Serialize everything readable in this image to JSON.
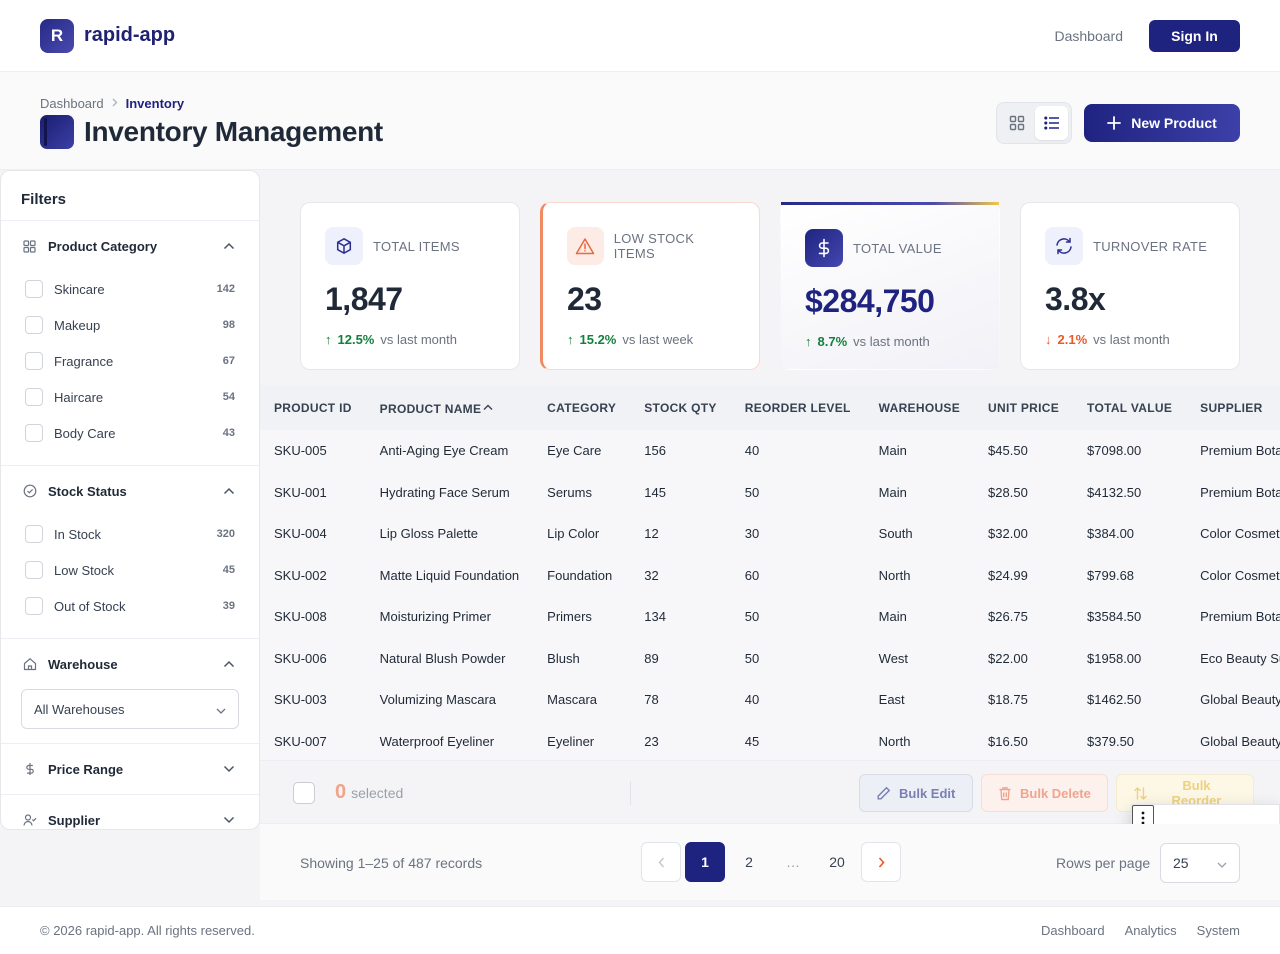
{
  "app": {
    "logo_letter": "R",
    "name": "rapid-app"
  },
  "topnav": {
    "dashboard_link": "Dashboard",
    "signin_label": "Sign In"
  },
  "breadcrumb": {
    "root": "Dashboard",
    "current": "Inventory"
  },
  "page": {
    "title": "Inventory Management",
    "new_product_label": "New Product",
    "view_mode": "list"
  },
  "filters": {
    "title": "Filters",
    "category": {
      "title": "Product Category",
      "items": [
        {
          "label": "Skincare",
          "count": "142"
        },
        {
          "label": "Makeup",
          "count": "98"
        },
        {
          "label": "Fragrance",
          "count": "67"
        },
        {
          "label": "Haircare",
          "count": "54"
        },
        {
          "label": "Body Care",
          "count": "43"
        }
      ]
    },
    "stock": {
      "title": "Stock Status",
      "items": [
        {
          "label": "In Stock",
          "count": "320"
        },
        {
          "label": "Low Stock",
          "count": "45"
        },
        {
          "label": "Out of Stock",
          "count": "39"
        }
      ]
    },
    "warehouse": {
      "title": "Warehouse",
      "selected": "All Warehouses"
    },
    "price": {
      "title": "Price Range"
    },
    "supplier": {
      "title": "Supplier"
    }
  },
  "stats": [
    {
      "label": "TOTAL ITEMS",
      "value": "1,847",
      "arrow": "↑",
      "change": "12.5%",
      "period": "vs last month"
    },
    {
      "label": "LOW STOCK ITEMS",
      "value": "23",
      "arrow": "↑",
      "change": "15.2%",
      "period": "vs last week"
    },
    {
      "label": "TOTAL VALUE",
      "value": "$284,750",
      "arrow": "↑",
      "change": "8.7%",
      "period": "vs last month"
    },
    {
      "label": "TURNOVER RATE",
      "value": "3.8x",
      "arrow": "↓",
      "change": "2.1%",
      "period": "vs last month"
    }
  ],
  "table": {
    "headers": [
      "PRODUCT ID",
      "PRODUCT NAME",
      "CATEGORY",
      "STOCK QTY",
      "REORDER LEVEL",
      "WAREHOUSE",
      "UNIT PRICE",
      "TOTAL VALUE",
      "SUPPLIER"
    ],
    "rows": [
      [
        "SKU-005",
        "Anti-Aging Eye Cream",
        "Eye Care",
        "156",
        "40",
        "Main",
        "$45.50",
        "$7098.00",
        "Premium Botanicals"
      ],
      [
        "SKU-001",
        "Hydrating Face Serum",
        "Serums",
        "145",
        "50",
        "Main",
        "$28.50",
        "$4132.50",
        "Premium Botanicals"
      ],
      [
        "SKU-004",
        "Lip Gloss Palette",
        "Lip Color",
        "12",
        "30",
        "South",
        "$32.00",
        "$384.00",
        "Color Cosmetics"
      ],
      [
        "SKU-002",
        "Matte Liquid Foundation",
        "Foundation",
        "32",
        "60",
        "North",
        "$24.99",
        "$799.68",
        "Color Cosmetics"
      ],
      [
        "SKU-008",
        "Moisturizing Primer",
        "Primers",
        "134",
        "50",
        "Main",
        "$26.75",
        "$3584.50",
        "Premium Botanicals"
      ],
      [
        "SKU-006",
        "Natural Blush Powder",
        "Blush",
        "89",
        "50",
        "West",
        "$22.00",
        "$1958.00",
        "Eco Beauty Supply"
      ],
      [
        "SKU-003",
        "Volumizing Mascara",
        "Mascara",
        "78",
        "40",
        "East",
        "$18.75",
        "$1462.50",
        "Global Beauty"
      ],
      [
        "SKU-007",
        "Waterproof Eyeliner",
        "Eyeliner",
        "23",
        "45",
        "North",
        "$16.50",
        "$379.50",
        "Global Beauty"
      ]
    ]
  },
  "bulk": {
    "count": "0",
    "selected_label": "selected",
    "edit": "Bulk Edit",
    "delete": "Bulk Delete",
    "reorder": "Bulk Reorder"
  },
  "pagination": {
    "showing": "Showing 1–25 of 487 records",
    "pages": [
      "1",
      "2",
      "…",
      "20"
    ],
    "current": "1",
    "rows_label": "Rows per page",
    "rows_value": "25"
  },
  "footer": {
    "copyright": "© 2026 rapid-app. All rights reserved.",
    "links": [
      "Dashboard",
      "Analytics",
      "System"
    ]
  },
  "colors": {
    "primary": "#1f2380",
    "success": "#15803d",
    "danger": "#e85a2a",
    "warning": "#ecd281"
  }
}
